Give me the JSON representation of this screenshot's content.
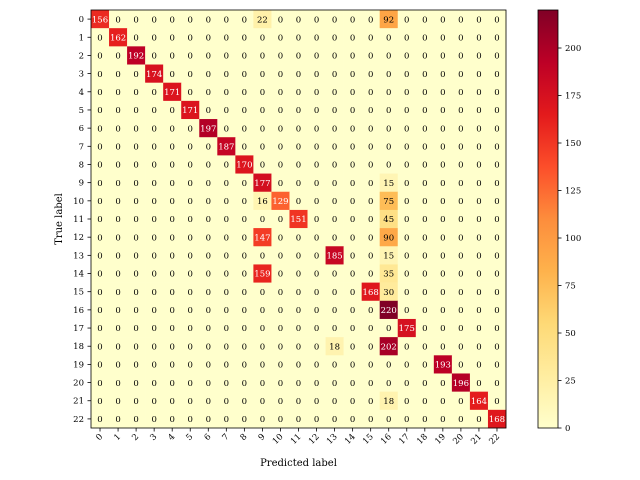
{
  "chart_data": {
    "type": "heatmap",
    "title": "",
    "xlabel": "Predicted label",
    "ylabel": "True label",
    "x_categories": [
      "0",
      "1",
      "2",
      "3",
      "4",
      "5",
      "6",
      "7",
      "8",
      "9",
      "10",
      "11",
      "12",
      "13",
      "14",
      "15",
      "16",
      "17",
      "18",
      "19",
      "20",
      "21",
      "22"
    ],
    "y_categories": [
      "0",
      "1",
      "2",
      "3",
      "4",
      "5",
      "6",
      "7",
      "8",
      "9",
      "10",
      "11",
      "12",
      "13",
      "14",
      "15",
      "16",
      "17",
      "18",
      "19",
      "20",
      "21",
      "22"
    ],
    "values": [
      [
        156,
        0,
        0,
        0,
        0,
        0,
        0,
        0,
        0,
        22,
        0,
        0,
        0,
        0,
        0,
        0,
        92,
        0,
        0,
        0,
        0,
        0,
        0
      ],
      [
        0,
        162,
        0,
        0,
        0,
        0,
        0,
        0,
        0,
        0,
        0,
        0,
        0,
        0,
        0,
        0,
        0,
        0,
        0,
        0,
        0,
        0,
        0
      ],
      [
        0,
        0,
        192,
        0,
        0,
        0,
        0,
        0,
        0,
        0,
        0,
        0,
        0,
        0,
        0,
        0,
        0,
        0,
        0,
        0,
        0,
        0,
        0
      ],
      [
        0,
        0,
        0,
        174,
        0,
        0,
        0,
        0,
        0,
        0,
        0,
        0,
        0,
        0,
        0,
        0,
        0,
        0,
        0,
        0,
        0,
        0,
        0
      ],
      [
        0,
        0,
        0,
        0,
        171,
        0,
        0,
        0,
        0,
        0,
        0,
        0,
        0,
        0,
        0,
        0,
        0,
        0,
        0,
        0,
        0,
        0,
        0
      ],
      [
        0,
        0,
        0,
        0,
        0,
        171,
        0,
        0,
        0,
        0,
        0,
        0,
        0,
        0,
        0,
        0,
        0,
        0,
        0,
        0,
        0,
        0,
        0
      ],
      [
        0,
        0,
        0,
        0,
        0,
        0,
        197,
        0,
        0,
        0,
        0,
        0,
        0,
        0,
        0,
        0,
        0,
        0,
        0,
        0,
        0,
        0,
        0
      ],
      [
        0,
        0,
        0,
        0,
        0,
        0,
        0,
        187,
        0,
        0,
        0,
        0,
        0,
        0,
        0,
        0,
        0,
        0,
        0,
        0,
        0,
        0,
        0
      ],
      [
        0,
        0,
        0,
        0,
        0,
        0,
        0,
        0,
        170,
        0,
        0,
        0,
        0,
        0,
        0,
        0,
        0,
        0,
        0,
        0,
        0,
        0,
        0
      ],
      [
        0,
        0,
        0,
        0,
        0,
        0,
        0,
        0,
        0,
        177,
        0,
        0,
        0,
        0,
        0,
        0,
        15,
        0,
        0,
        0,
        0,
        0,
        0
      ],
      [
        0,
        0,
        0,
        0,
        0,
        0,
        0,
        0,
        0,
        16,
        129,
        0,
        0,
        0,
        0,
        0,
        75,
        0,
        0,
        0,
        0,
        0,
        0
      ],
      [
        0,
        0,
        0,
        0,
        0,
        0,
        0,
        0,
        0,
        0,
        0,
        151,
        0,
        0,
        0,
        0,
        45,
        0,
        0,
        0,
        0,
        0,
        0
      ],
      [
        0,
        0,
        0,
        0,
        0,
        0,
        0,
        0,
        0,
        147,
        0,
        0,
        0,
        0,
        0,
        0,
        90,
        0,
        0,
        0,
        0,
        0,
        0
      ],
      [
        0,
        0,
        0,
        0,
        0,
        0,
        0,
        0,
        0,
        0,
        0,
        0,
        0,
        185,
        0,
        0,
        15,
        0,
        0,
        0,
        0,
        0,
        0
      ],
      [
        0,
        0,
        0,
        0,
        0,
        0,
        0,
        0,
        0,
        159,
        0,
        0,
        0,
        0,
        0,
        0,
        35,
        0,
        0,
        0,
        0,
        0,
        0
      ],
      [
        0,
        0,
        0,
        0,
        0,
        0,
        0,
        0,
        0,
        0,
        0,
        0,
        0,
        0,
        0,
        168,
        30,
        0,
        0,
        0,
        0,
        0,
        0
      ],
      [
        0,
        0,
        0,
        0,
        0,
        0,
        0,
        0,
        0,
        0,
        0,
        0,
        0,
        0,
        0,
        0,
        220,
        0,
        0,
        0,
        0,
        0,
        0
      ],
      [
        0,
        0,
        0,
        0,
        0,
        0,
        0,
        0,
        0,
        0,
        0,
        0,
        0,
        0,
        0,
        0,
        0,
        175,
        0,
        0,
        0,
        0,
        0
      ],
      [
        0,
        0,
        0,
        0,
        0,
        0,
        0,
        0,
        0,
        0,
        0,
        0,
        0,
        18,
        0,
        0,
        202,
        0,
        0,
        0,
        0,
        0,
        0
      ],
      [
        0,
        0,
        0,
        0,
        0,
        0,
        0,
        0,
        0,
        0,
        0,
        0,
        0,
        0,
        0,
        0,
        0,
        0,
        0,
        193,
        0,
        0,
        0
      ],
      [
        0,
        0,
        0,
        0,
        0,
        0,
        0,
        0,
        0,
        0,
        0,
        0,
        0,
        0,
        0,
        0,
        0,
        0,
        0,
        0,
        196,
        0,
        0
      ],
      [
        0,
        0,
        0,
        0,
        0,
        0,
        0,
        0,
        0,
        0,
        0,
        0,
        0,
        0,
        0,
        0,
        18,
        0,
        0,
        0,
        0,
        164,
        0
      ],
      [
        0,
        0,
        0,
        0,
        0,
        0,
        0,
        0,
        0,
        0,
        0,
        0,
        0,
        0,
        0,
        0,
        0,
        0,
        0,
        0,
        0,
        0,
        168
      ]
    ],
    "colormap": [
      "#ffffcc",
      "#ffeda0",
      "#fed976",
      "#feb24c",
      "#fd8d3c",
      "#fc4e2a",
      "#e31a1c",
      "#bd0026",
      "#800026"
    ],
    "value_range": [
      0,
      220
    ],
    "colorbar_ticks": [
      0,
      25,
      50,
      75,
      100,
      125,
      150,
      175,
      200
    ],
    "grid": false,
    "legend": "colorbar-right"
  }
}
